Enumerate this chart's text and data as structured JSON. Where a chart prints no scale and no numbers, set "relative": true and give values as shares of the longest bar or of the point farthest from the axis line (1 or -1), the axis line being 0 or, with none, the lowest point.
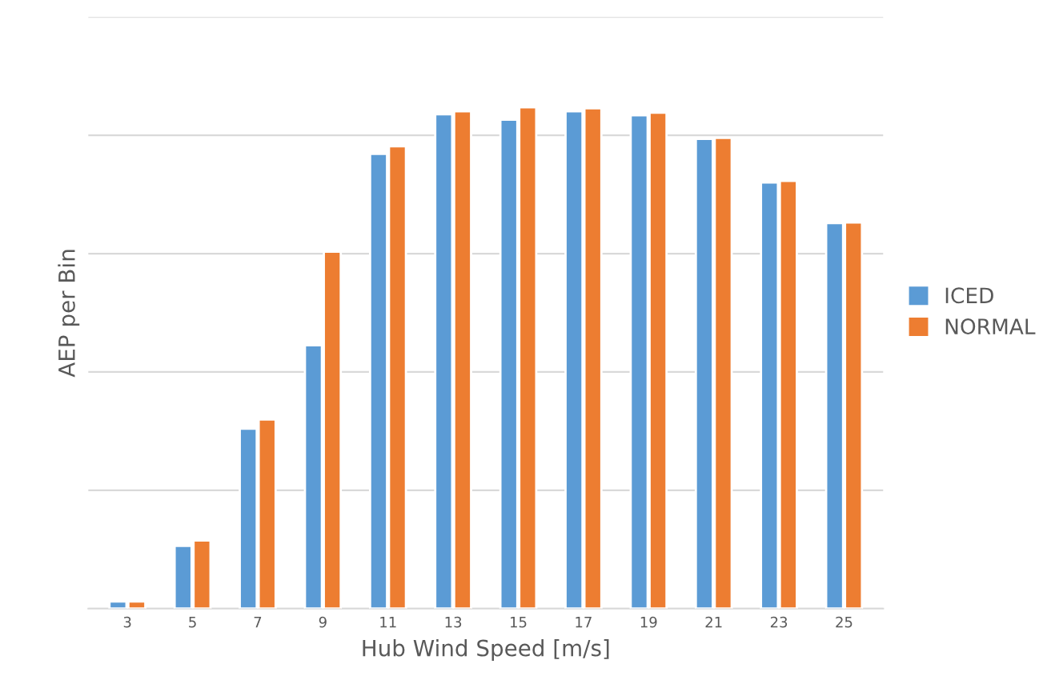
{
  "chart_data": {
    "type": "bar",
    "xlabel": "Hub Wind Speed [m/s]",
    "ylabel": "AEP per Bin",
    "relative": true,
    "grid": "y",
    "legend": "right",
    "categories": [
      "3",
      "5",
      "7",
      "9",
      "11",
      "13",
      "15",
      "17",
      "19",
      "21",
      "23",
      "25"
    ],
    "series": [
      {
        "name": "ICED",
        "color": "#5b9bd5",
        "values": [
          0.014,
          0.125,
          0.359,
          0.525,
          0.907,
          0.986,
          0.975,
          0.992,
          0.984,
          0.937,
          0.85,
          0.769
        ]
      },
      {
        "name": "NORMAL",
        "color": "#ed7d31",
        "values": [
          0.014,
          0.136,
          0.377,
          0.712,
          0.922,
          0.992,
          1,
          0.998,
          0.989,
          0.939,
          0.853,
          0.77
        ]
      }
    ]
  }
}
